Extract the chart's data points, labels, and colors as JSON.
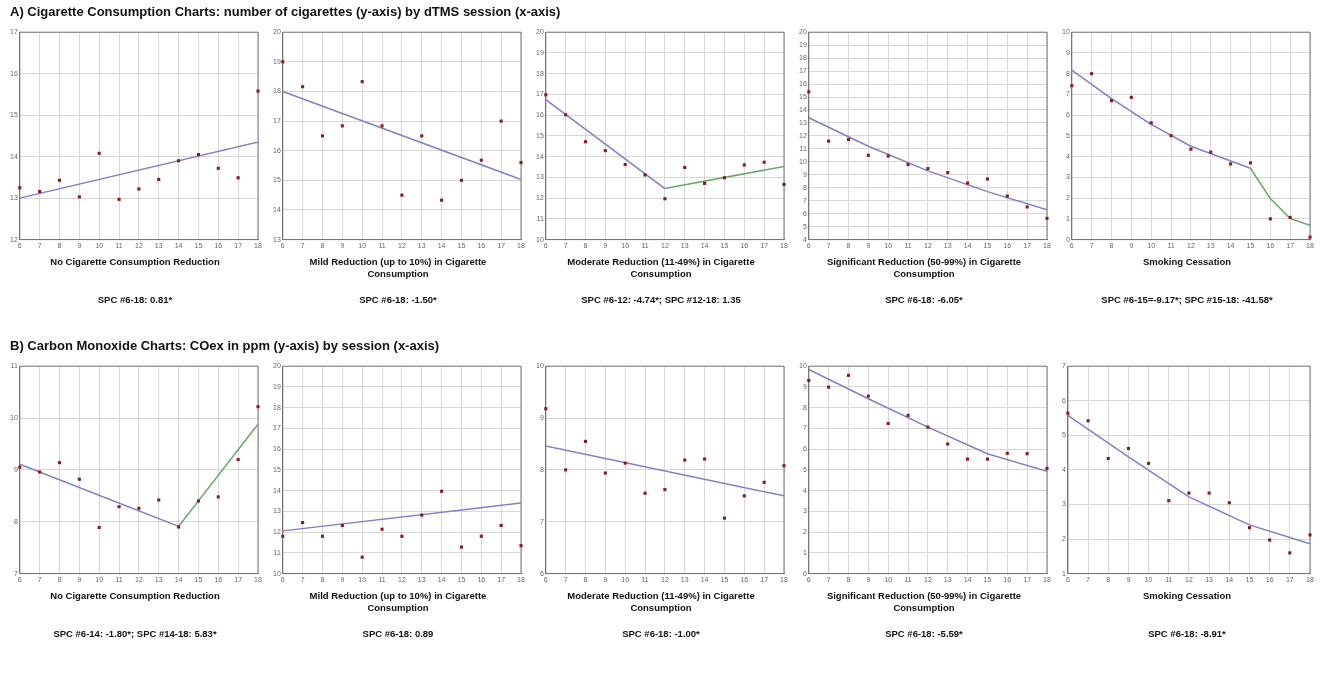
{
  "chart_data": [
    {
      "type": "scatter",
      "title": "A) Cigarette Consumption Charts: number of cigarettes (y-axis) by dTMS session (x-axis)",
      "subtitle": "No Cigarette Consumption Reduction",
      "annotations": [
        "SPC #6-18: 0.81*"
      ],
      "x": [
        6,
        7,
        8,
        9,
        10,
        11,
        12,
        13,
        14,
        15,
        16,
        17,
        18
      ],
      "xlim": [
        6,
        18
      ],
      "xticks": [
        6,
        7,
        8,
        9,
        10,
        11,
        12,
        13,
        14,
        15,
        16,
        17,
        18
      ],
      "ylim": [
        12,
        17
      ],
      "yticks": [
        12,
        13,
        14,
        15,
        16,
        17
      ],
      "grid": true,
      "series": [
        {
          "type": "scatter",
          "marker": "square",
          "color": "#8b1a1a",
          "values": [
            13.25,
            13.16,
            13.43,
            13.03,
            14.08,
            12.97,
            13.22,
            13.45,
            13.9,
            14.05,
            13.72,
            13.49,
            15.58
          ]
        },
        {
          "type": "line",
          "marker": "none",
          "color": "#8080c8",
          "x": [
            6,
            18
          ],
          "values": [
            13.0,
            14.35
          ]
        }
      ]
    },
    {
      "type": "scatter",
      "subtitle": "Mild Reduction (up to 10%) in Cigarette Consumption",
      "annotations": [
        "SPC #6-18: -1.50*"
      ],
      "x": [
        6,
        7,
        8,
        9,
        10,
        11,
        12,
        13,
        14,
        15,
        16,
        17,
        18
      ],
      "xlim": [
        6,
        18
      ],
      "xticks": [
        6,
        7,
        8,
        9,
        10,
        11,
        12,
        13,
        14,
        15,
        16,
        17,
        18
      ],
      "ylim": [
        13,
        20
      ],
      "yticks": [
        13,
        14,
        15,
        16,
        17,
        18,
        19,
        20
      ],
      "grid": true,
      "series": [
        {
          "type": "scatter",
          "marker": "square",
          "color": "#8b1a1a",
          "values": [
            19.0,
            18.16,
            16.5,
            16.84,
            18.33,
            16.84,
            14.5,
            16.5,
            14.33,
            15.0,
            15.68,
            17.0,
            15.6
          ]
        },
        {
          "type": "line",
          "marker": "none",
          "color": "#8080c8",
          "x": [
            6,
            18
          ],
          "values": [
            18.0,
            15.03
          ]
        }
      ]
    },
    {
      "type": "scatter",
      "subtitle": "Moderate Reduction (11-49%) in Cigarette Consumption",
      "annotations": [
        "SPC #6-12: -4.74*; SPC #12-18: 1.35"
      ],
      "x": [
        6,
        7,
        8,
        9,
        10,
        11,
        12,
        13,
        14,
        15,
        16,
        17,
        18
      ],
      "xlim": [
        6,
        18
      ],
      "xticks": [
        6,
        7,
        8,
        9,
        10,
        11,
        12,
        13,
        14,
        15,
        16,
        17,
        18
      ],
      "ylim": [
        10,
        20
      ],
      "yticks": [
        10,
        11,
        12,
        13,
        14,
        15,
        16,
        17,
        18,
        19,
        20
      ],
      "grid": true,
      "series": [
        {
          "type": "scatter",
          "marker": "square",
          "color": "#8b1a1a",
          "values": [
            16.98,
            16.02,
            14.72,
            14.29,
            13.62,
            13.12,
            11.97,
            13.48,
            12.71,
            12.98,
            13.6,
            13.73,
            12.66
          ]
        },
        {
          "type": "line",
          "marker": "none",
          "color": "#8080c8",
          "x": [
            6,
            12
          ],
          "values": [
            16.75,
            12.46
          ]
        },
        {
          "type": "line",
          "marker": "none",
          "color": "#6aa86a",
          "x": [
            12,
            18
          ],
          "values": [
            12.46,
            13.53
          ]
        }
      ]
    },
    {
      "type": "scatter",
      "subtitle": "Significant Reduction (50-99%) in Cigarette Consumption",
      "annotations": [
        "SPC #6-18: -6.05*"
      ],
      "x": [
        6,
        7,
        8,
        9,
        10,
        11,
        12,
        13,
        14,
        15,
        16,
        17,
        18
      ],
      "xlim": [
        6,
        18
      ],
      "xticks": [
        6,
        7,
        8,
        9,
        10,
        11,
        12,
        13,
        14,
        15,
        16,
        17,
        18
      ],
      "ylim": [
        4,
        20
      ],
      "yticks": [
        4,
        5,
        6,
        7,
        8,
        9,
        10,
        11,
        12,
        13,
        14,
        15,
        16,
        17,
        18,
        19,
        20
      ],
      "grid": true,
      "series": [
        {
          "type": "scatter",
          "marker": "square",
          "color": "#8b1a1a",
          "values": [
            15.4,
            11.6,
            11.72,
            10.5,
            10.45,
            9.79,
            9.48,
            9.17,
            8.37,
            8.68,
            7.36,
            6.52,
            5.64
          ]
        },
        {
          "type": "line",
          "marker": "none",
          "color": "#8080c8",
          "x": [
            6,
            9,
            12,
            15,
            18
          ],
          "values": [
            13.4,
            11.2,
            9.3,
            7.7,
            6.3
          ]
        }
      ]
    },
    {
      "type": "scatter",
      "subtitle": "Smoking Cessation",
      "annotations": [
        "SPC #6-15=-9.17*; SPC #15-18: -41.58*"
      ],
      "x": [
        6,
        7,
        8,
        9,
        10,
        11,
        12,
        13,
        14,
        15,
        16,
        17,
        18
      ],
      "xlim": [
        6,
        18
      ],
      "xticks": [
        6,
        7,
        8,
        9,
        10,
        11,
        12,
        13,
        14,
        15,
        16,
        17,
        18
      ],
      "ylim": [
        0,
        10
      ],
      "yticks": [
        0,
        1,
        2,
        3,
        4,
        5,
        6,
        7,
        8,
        9,
        10
      ],
      "grid": true,
      "series": [
        {
          "type": "scatter",
          "marker": "square",
          "color": "#8b1a1a",
          "values": [
            7.42,
            8.0,
            6.7,
            6.86,
            5.63,
            5.01,
            4.36,
            4.22,
            3.65,
            3.7,
            1.0,
            1.07,
            0.12
          ]
        },
        {
          "type": "line",
          "marker": "none",
          "color": "#8080c8",
          "x": [
            6,
            8,
            10,
            12,
            15
          ],
          "values": [
            8.17,
            6.8,
            5.56,
            4.5,
            3.44
          ]
        },
        {
          "type": "line",
          "marker": "none",
          "color": "#6aa86a",
          "x": [
            15,
            16,
            17,
            18
          ],
          "values": [
            3.44,
            1.98,
            1.02,
            0.69
          ]
        }
      ]
    },
    {
      "type": "scatter",
      "title": "B) Carbon Monoxide Charts: COex in ppm (y-axis) by session (x-axis)",
      "subtitle": "No Cigarette Consumption Reduction",
      "annotations": [
        "SPC #6-14: -1.80*; SPC #14-18: 5.83*"
      ],
      "x": [
        6,
        7,
        8,
        9,
        10,
        11,
        12,
        13,
        14,
        15,
        16,
        17,
        18
      ],
      "xlim": [
        6,
        18
      ],
      "xticks": [
        6,
        7,
        8,
        9,
        10,
        11,
        12,
        13,
        14,
        15,
        16,
        17,
        18
      ],
      "ylim": [
        7,
        11
      ],
      "yticks": [
        7,
        8,
        9,
        10,
        11
      ],
      "grid": true,
      "series": [
        {
          "type": "scatter",
          "marker": "square",
          "color": "#8b1a1a",
          "values": [
            9.05,
            8.96,
            9.14,
            8.82,
            7.89,
            8.29,
            8.26,
            8.42,
            7.9,
            8.4,
            8.48,
            9.2,
            10.22
          ]
        },
        {
          "type": "line",
          "marker": "none",
          "color": "#8080c8",
          "x": [
            6,
            14
          ],
          "values": [
            9.11,
            7.91
          ]
        },
        {
          "type": "line",
          "marker": "none",
          "color": "#6aa86a",
          "x": [
            14,
            18
          ],
          "values": [
            7.91,
            9.88
          ]
        }
      ]
    },
    {
      "type": "scatter",
      "subtitle": "Mild Reduction (up to 10%) in Cigarette Consumption",
      "annotations": [
        "SPC #6-18: 0.89"
      ],
      "x": [
        6,
        7,
        8,
        9,
        10,
        11,
        12,
        13,
        14,
        15,
        16,
        17,
        18
      ],
      "xlim": [
        6,
        18
      ],
      "xticks": [
        6,
        7,
        8,
        9,
        10,
        11,
        12,
        13,
        14,
        15,
        16,
        17,
        18
      ],
      "ylim": [
        10,
        20
      ],
      "yticks": [
        10,
        11,
        12,
        13,
        14,
        15,
        16,
        17,
        18,
        19,
        20
      ],
      "grid": true,
      "series": [
        {
          "type": "scatter",
          "marker": "square",
          "color": "#8b1a1a",
          "values": [
            11.8,
            12.46,
            11.8,
            12.32,
            10.79,
            12.14,
            11.8,
            12.82,
            13.97,
            11.28,
            11.8,
            12.32,
            11.35
          ]
        },
        {
          "type": "line",
          "marker": "none",
          "color": "#8080c8",
          "x": [
            6,
            18
          ],
          "values": [
            12.06,
            13.4
          ]
        }
      ]
    },
    {
      "type": "scatter",
      "subtitle": "Moderate Reduction (11-49%) in Cigarette Consumption",
      "annotations": [
        "SPC #6-18: -1.00*"
      ],
      "x": [
        6,
        7,
        8,
        9,
        10,
        11,
        12,
        13,
        14,
        15,
        16,
        17,
        18
      ],
      "xlim": [
        6,
        18
      ],
      "xticks": [
        6,
        7,
        8,
        9,
        10,
        11,
        12,
        13,
        14,
        15,
        16,
        17,
        18
      ],
      "ylim": [
        6,
        10
      ],
      "yticks": [
        6,
        7,
        8,
        9,
        10
      ],
      "grid": true,
      "series": [
        {
          "type": "scatter",
          "marker": "square",
          "color": "#8b1a1a",
          "values": [
            9.18,
            8.0,
            8.55,
            7.94,
            8.13,
            7.55,
            7.62,
            8.19,
            8.21,
            7.07,
            7.5,
            7.76,
            8.08
          ]
        },
        {
          "type": "line",
          "marker": "none",
          "color": "#8080c8",
          "x": [
            6,
            18
          ],
          "values": [
            8.46,
            7.5
          ]
        }
      ]
    },
    {
      "type": "scatter",
      "subtitle": "Significant Reduction (50-99%) in Cigarette Consumption",
      "annotations": [
        "SPC #6-18: -5.59*"
      ],
      "x": [
        6,
        7,
        8,
        9,
        10,
        11,
        12,
        13,
        14,
        15,
        16,
        17,
        18
      ],
      "xlim": [
        6,
        18
      ],
      "xticks": [
        6,
        7,
        8,
        9,
        10,
        11,
        12,
        13,
        14,
        15,
        16,
        17,
        18
      ],
      "ylim": [
        0,
        10
      ],
      "yticks": [
        0,
        1,
        2,
        3,
        4,
        5,
        6,
        7,
        8,
        9,
        10
      ],
      "grid": true,
      "series": [
        {
          "type": "scatter",
          "marker": "square",
          "color": "#8b1a1a",
          "values": [
            9.31,
            8.99,
            9.56,
            8.56,
            7.24,
            7.63,
            7.06,
            6.25,
            5.52,
            5.52,
            5.8,
            5.78,
            5.07
          ]
        },
        {
          "type": "line",
          "marker": "none",
          "color": "#8080c8",
          "x": [
            6,
            9,
            12,
            15,
            18
          ],
          "values": [
            9.84,
            8.43,
            7.06,
            5.78,
            4.93
          ]
        }
      ]
    },
    {
      "type": "scatter",
      "subtitle": "Smoking Cessation",
      "annotations": [
        "SPC #6-18: -8.91*"
      ],
      "x": [
        6,
        7,
        8,
        9,
        10,
        11,
        12,
        13,
        14,
        15,
        16,
        17,
        18
      ],
      "xlim": [
        6,
        18
      ],
      "xticks": [
        6,
        7,
        8,
        9,
        10,
        11,
        12,
        13,
        14,
        15,
        16,
        17,
        18
      ],
      "ylim": [
        1,
        7
      ],
      "yticks": [
        1,
        2,
        3,
        4,
        5,
        6,
        7
      ],
      "grid": true,
      "series": [
        {
          "type": "scatter",
          "marker": "square",
          "color": "#8b1a1a",
          "values": [
            5.64,
            5.42,
            4.33,
            4.62,
            4.19,
            3.11,
            3.33,
            3.33,
            3.05,
            2.33,
            1.97,
            1.6,
            2.12
          ]
        },
        {
          "type": "line",
          "marker": "none",
          "color": "#8080c8",
          "x": [
            6,
            9,
            12,
            15,
            18
          ],
          "values": [
            5.58,
            4.38,
            3.22,
            2.41,
            1.86
          ]
        }
      ]
    }
  ]
}
